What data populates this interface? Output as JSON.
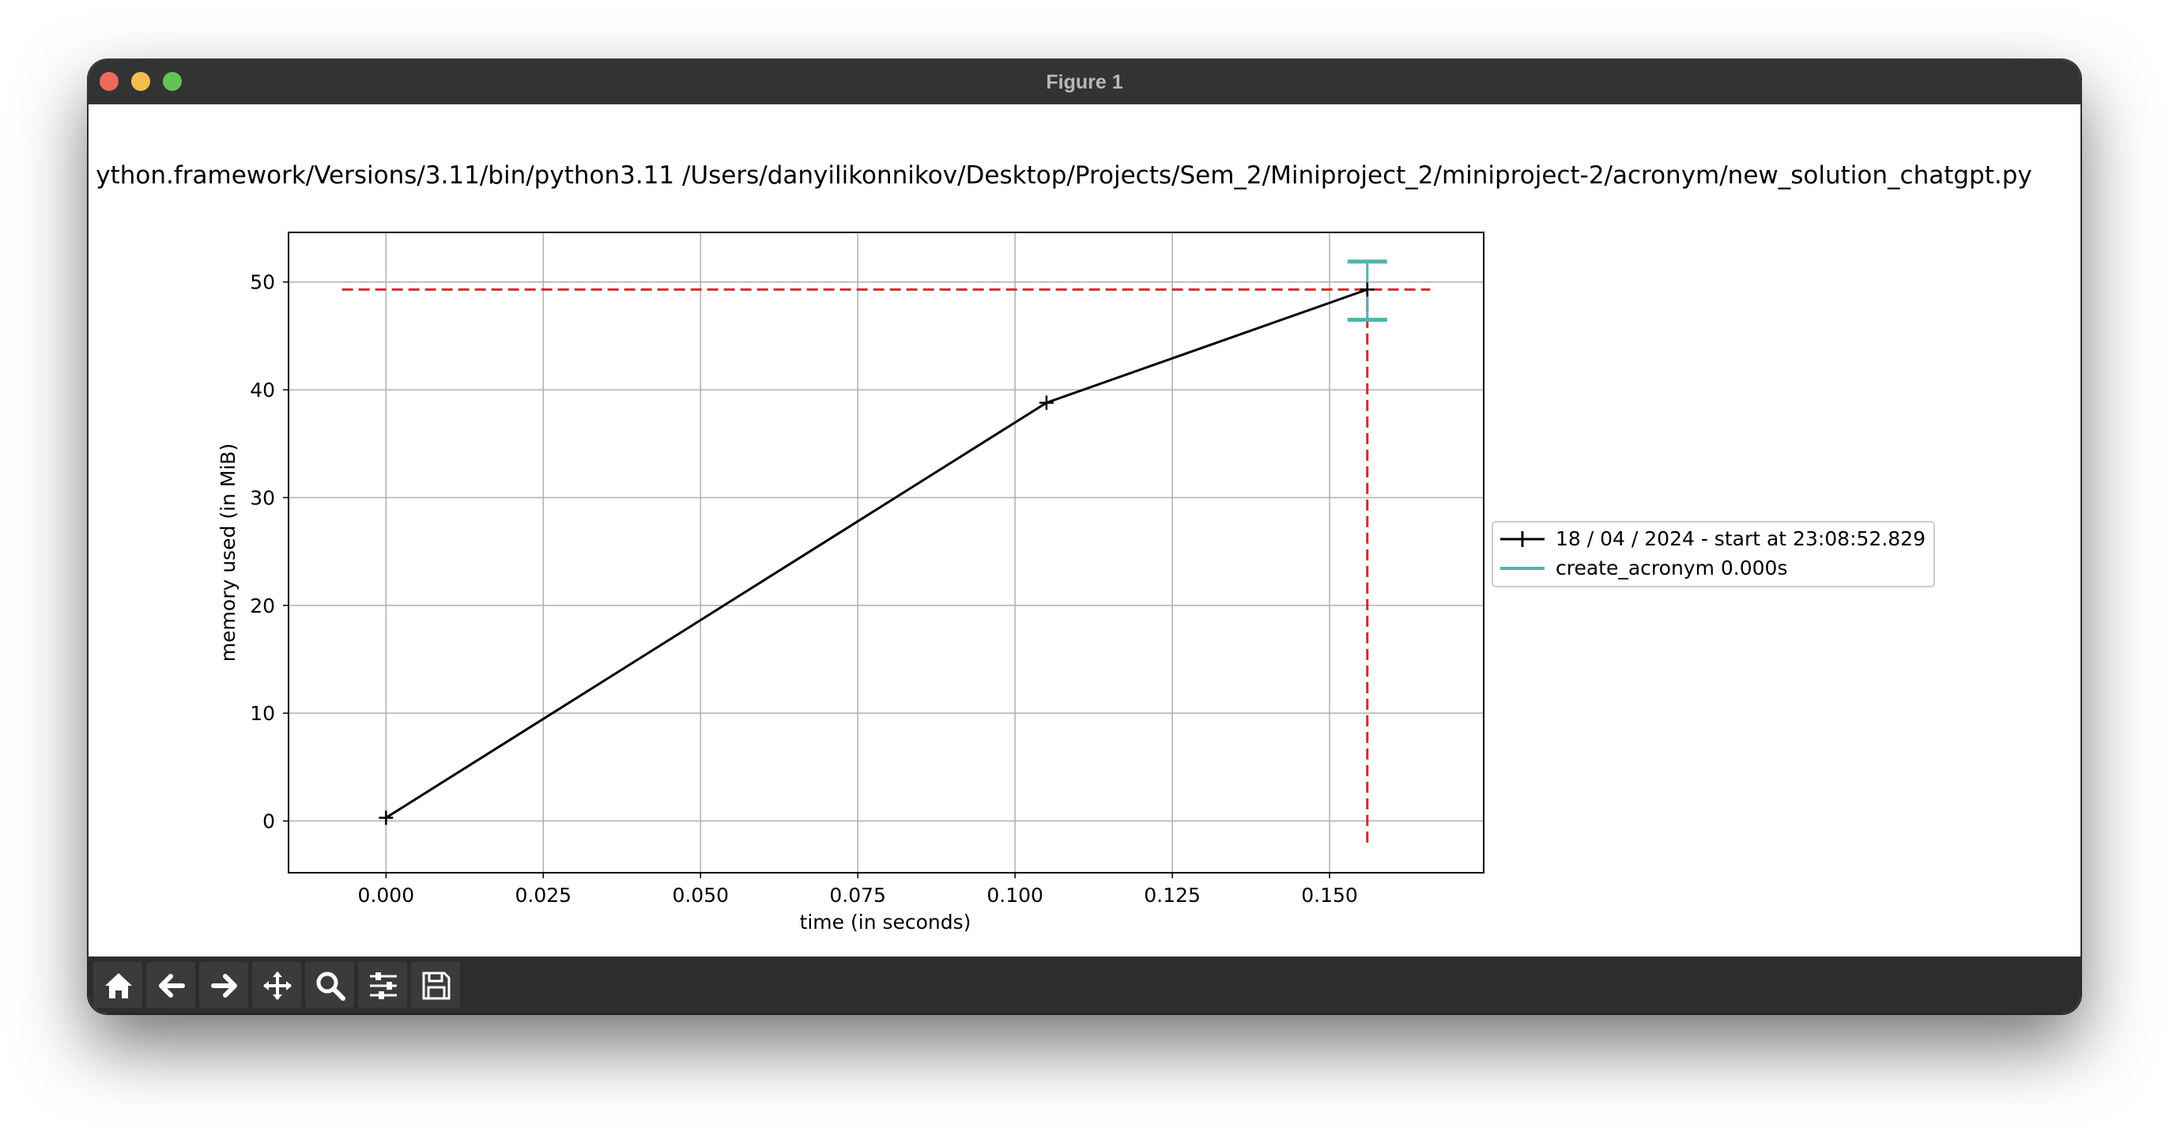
{
  "window": {
    "title": "Figure 1",
    "controls": {
      "close_color": "#ed6a5e",
      "minimize_color": "#f5bf4f",
      "maximize_color": "#61c554"
    }
  },
  "chart_data": {
    "type": "line",
    "title": "ython.framework/Versions/3.11/bin/python3.11 /Users/danyilikonnikov/Desktop/Projects/Sem_2/Miniproject_2/miniproject-2/acronym/new_solution_chatgpt.py",
    "xlabel": "time (in seconds)",
    "ylabel": "memory used (in MiB)",
    "xlim": [
      -0.0155,
      0.1745
    ],
    "ylim": [
      -4.8,
      54.6
    ],
    "xticks": [
      0.0,
      0.025,
      0.05,
      0.075,
      0.1,
      0.125,
      0.15
    ],
    "xtick_labels": [
      "0.000",
      "0.025",
      "0.050",
      "0.075",
      "0.100",
      "0.125",
      "0.150"
    ],
    "yticks": [
      0,
      10,
      20,
      30,
      40,
      50
    ],
    "ytick_labels": [
      "0",
      "10",
      "20",
      "30",
      "40",
      "50"
    ],
    "grid": true,
    "legend_position": "outside-right",
    "series": [
      {
        "name": "18 / 04 / 2024 - start at 23:08:52.829",
        "color": "#000000",
        "marker": "+",
        "x": [
          0.0,
          0.105,
          0.156
        ],
        "y": [
          0.3,
          38.8,
          49.3
        ]
      }
    ],
    "annotations": {
      "max_memory_hline": {
        "y": 49.3,
        "x_from": -0.007,
        "x_to": 0.166,
        "color": "#d62728",
        "style": "dashed"
      },
      "max_time_vline": {
        "x": 0.156,
        "y_from": -2.0,
        "y_to": 49.3,
        "color": "#d62728",
        "style": "dashed"
      },
      "function_bracket": {
        "name": "create_acronym 0.000s",
        "x": 0.156,
        "y_low": 46.5,
        "y_high": 51.9,
        "color": "#4db6ac"
      }
    }
  },
  "toolbar": {
    "buttons": [
      {
        "name": "home-button",
        "icon": "home-icon"
      },
      {
        "name": "back-button",
        "icon": "arrow-left-icon"
      },
      {
        "name": "forward-button",
        "icon": "arrow-right-icon"
      },
      {
        "name": "pan-button",
        "icon": "move-icon"
      },
      {
        "name": "zoom-button",
        "icon": "magnifier-icon"
      },
      {
        "name": "configure-subplots-button",
        "icon": "sliders-icon"
      },
      {
        "name": "save-button",
        "icon": "floppy-disk-icon"
      }
    ]
  }
}
